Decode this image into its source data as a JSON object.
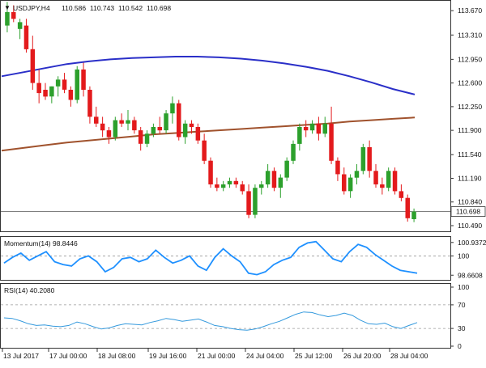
{
  "header": {
    "symbol": "USDJPY,H4",
    "open": "110.586",
    "high": "110.743",
    "low": "110.542",
    "close": "110.698",
    "arrow_glyph": "▼"
  },
  "price_axis": {
    "ticks": [
      "113.670",
      "113.310",
      "112.950",
      "112.600",
      "112.250",
      "111.900",
      "111.540",
      "111.190",
      "110.840",
      "110.490"
    ],
    "tick_values": [
      113.67,
      113.31,
      112.95,
      112.6,
      112.25,
      111.9,
      111.54,
      111.19,
      110.84,
      110.49
    ],
    "current_label": "110.698",
    "current_value": 110.698,
    "range": [
      110.43,
      113.78
    ]
  },
  "momentum": {
    "title": "Momentum(14) 98.8446",
    "ticks": [
      "100.9372",
      "100",
      "98.6608"
    ],
    "tick_values": [
      100.9372,
      100,
      98.6608
    ],
    "range": [
      98.45,
      101.15
    ],
    "level": 100
  },
  "rsi": {
    "title": "RSI(14) 40.2080",
    "ticks": [
      "100",
      "70",
      "30",
      "0"
    ],
    "tick_values": [
      100,
      70,
      30,
      0
    ],
    "range": [
      0,
      100
    ],
    "levels": [
      70,
      30
    ]
  },
  "time_axis": {
    "labels": [
      "13 Jul 2017",
      "17 Jul 00:00",
      "18 Jul 08:00",
      "19 Jul 16:00",
      "21 Jul 00:00",
      "24 Jul 04:00",
      "25 Jul 12:00",
      "26 Jul 20:00",
      "28 Jul 04:00"
    ]
  },
  "colors": {
    "bull": "#2ca02c",
    "bear": "#e31a1c",
    "ma_fast": "#2a2fc8",
    "ma_slow": "#a0522d",
    "oscillator": "#1e90ff",
    "rsi": "#3399dd",
    "grid": "#cccccc",
    "text": "#111111"
  },
  "chart_data": {
    "type": "candlestick",
    "title": "USDJPY,H4",
    "candles": [
      {
        "o": 113.45,
        "h": 113.8,
        "l": 113.35,
        "c": 113.65
      },
      {
        "o": 113.65,
        "h": 113.75,
        "l": 113.5,
        "c": 113.55
      },
      {
        "o": 113.4,
        "h": 113.55,
        "l": 113.25,
        "c": 113.5
      },
      {
        "o": 113.45,
        "h": 113.55,
        "l": 113.05,
        "c": 113.1
      },
      {
        "o": 113.1,
        "h": 113.3,
        "l": 112.5,
        "c": 112.6
      },
      {
        "o": 112.6,
        "h": 112.8,
        "l": 112.3,
        "c": 112.45
      },
      {
        "o": 112.5,
        "h": 112.6,
        "l": 112.35,
        "c": 112.4
      },
      {
        "o": 112.4,
        "h": 112.55,
        "l": 112.3,
        "c": 112.55
      },
      {
        "o": 112.55,
        "h": 112.7,
        "l": 112.4,
        "c": 112.65
      },
      {
        "o": 112.65,
        "h": 112.75,
        "l": 112.45,
        "c": 112.5
      },
      {
        "o": 112.5,
        "h": 112.55,
        "l": 112.25,
        "c": 112.35
      },
      {
        "o": 112.35,
        "h": 112.85,
        "l": 112.3,
        "c": 112.8
      },
      {
        "o": 112.8,
        "h": 112.9,
        "l": 112.4,
        "c": 112.5
      },
      {
        "o": 112.5,
        "h": 112.55,
        "l": 112.0,
        "c": 112.1
      },
      {
        "o": 112.1,
        "h": 112.25,
        "l": 111.95,
        "c": 112.0
      },
      {
        "o": 112.0,
        "h": 112.1,
        "l": 111.8,
        "c": 111.9
      },
      {
        "o": 111.9,
        "h": 111.95,
        "l": 111.7,
        "c": 111.8
      },
      {
        "o": 111.8,
        "h": 112.1,
        "l": 111.75,
        "c": 112.05
      },
      {
        "o": 112.05,
        "h": 112.15,
        "l": 111.95,
        "c": 112.0
      },
      {
        "o": 112.0,
        "h": 112.2,
        "l": 111.9,
        "c": 112.05
      },
      {
        "o": 112.05,
        "h": 112.1,
        "l": 111.85,
        "c": 111.9
      },
      {
        "o": 111.9,
        "h": 111.95,
        "l": 111.6,
        "c": 111.7
      },
      {
        "o": 111.7,
        "h": 111.9,
        "l": 111.65,
        "c": 111.85
      },
      {
        "o": 111.85,
        "h": 112.0,
        "l": 111.8,
        "c": 111.95
      },
      {
        "o": 111.95,
        "h": 112.1,
        "l": 111.85,
        "c": 111.9
      },
      {
        "o": 111.9,
        "h": 112.2,
        "l": 111.85,
        "c": 112.15
      },
      {
        "o": 112.15,
        "h": 112.4,
        "l": 112.0,
        "c": 112.3
      },
      {
        "o": 112.3,
        "h": 112.35,
        "l": 111.75,
        "c": 111.8
      },
      {
        "o": 111.8,
        "h": 112.05,
        "l": 111.7,
        "c": 112.0
      },
      {
        "o": 112.0,
        "h": 112.05,
        "l": 111.85,
        "c": 111.95
      },
      {
        "o": 111.95,
        "h": 112.0,
        "l": 111.7,
        "c": 111.75
      },
      {
        "o": 111.75,
        "h": 111.85,
        "l": 111.4,
        "c": 111.45
      },
      {
        "o": 111.45,
        "h": 111.5,
        "l": 111.05,
        "c": 111.1
      },
      {
        "o": 111.1,
        "h": 111.2,
        "l": 111.0,
        "c": 111.05
      },
      {
        "o": 111.05,
        "h": 111.15,
        "l": 111.0,
        "c": 111.1
      },
      {
        "o": 111.1,
        "h": 111.2,
        "l": 111.05,
        "c": 111.15
      },
      {
        "o": 111.15,
        "h": 111.2,
        "l": 111.05,
        "c": 111.1
      },
      {
        "o": 111.1,
        "h": 111.15,
        "l": 110.95,
        "c": 111.0
      },
      {
        "o": 111.0,
        "h": 111.1,
        "l": 110.6,
        "c": 110.65
      },
      {
        "o": 110.65,
        "h": 111.1,
        "l": 110.6,
        "c": 111.05
      },
      {
        "o": 111.05,
        "h": 111.15,
        "l": 110.95,
        "c": 111.1
      },
      {
        "o": 111.1,
        "h": 111.4,
        "l": 111.05,
        "c": 111.3
      },
      {
        "o": 111.3,
        "h": 111.35,
        "l": 111.0,
        "c": 111.05
      },
      {
        "o": 111.05,
        "h": 111.25,
        "l": 110.9,
        "c": 111.2
      },
      {
        "o": 111.2,
        "h": 111.5,
        "l": 111.15,
        "c": 111.45
      },
      {
        "o": 111.45,
        "h": 111.75,
        "l": 111.4,
        "c": 111.7
      },
      {
        "o": 111.7,
        "h": 112.0,
        "l": 111.6,
        "c": 111.95
      },
      {
        "o": 111.95,
        "h": 112.05,
        "l": 111.8,
        "c": 111.9
      },
      {
        "o": 111.9,
        "h": 112.05,
        "l": 111.85,
        "c": 112.0
      },
      {
        "o": 112.0,
        "h": 112.1,
        "l": 111.75,
        "c": 111.85
      },
      {
        "o": 111.85,
        "h": 112.1,
        "l": 111.8,
        "c": 112.0
      },
      {
        "o": 112.0,
        "h": 112.25,
        "l": 111.4,
        "c": 111.45
      },
      {
        "o": 111.45,
        "h": 111.5,
        "l": 111.15,
        "c": 111.25
      },
      {
        "o": 111.25,
        "h": 111.35,
        "l": 110.95,
        "c": 111.0
      },
      {
        "o": 111.0,
        "h": 111.25,
        "l": 110.9,
        "c": 111.2
      },
      {
        "o": 111.2,
        "h": 111.4,
        "l": 111.1,
        "c": 111.3
      },
      {
        "o": 111.3,
        "h": 111.7,
        "l": 111.25,
        "c": 111.65
      },
      {
        "o": 111.65,
        "h": 111.75,
        "l": 111.2,
        "c": 111.3
      },
      {
        "o": 111.3,
        "h": 111.4,
        "l": 111.05,
        "c": 111.1
      },
      {
        "o": 111.1,
        "h": 111.2,
        "l": 110.95,
        "c": 111.05
      },
      {
        "o": 111.05,
        "h": 111.35,
        "l": 111.0,
        "c": 111.3
      },
      {
        "o": 111.3,
        "h": 111.35,
        "l": 110.95,
        "c": 111.0
      },
      {
        "o": 111.0,
        "h": 111.1,
        "l": 110.85,
        "c": 110.9
      },
      {
        "o": 110.9,
        "h": 110.95,
        "l": 110.55,
        "c": 110.6
      },
      {
        "o": 110.586,
        "h": 110.743,
        "l": 110.542,
        "c": 110.698
      }
    ],
    "ma_fast": [
      112.7,
      112.76,
      112.82,
      112.88,
      112.92,
      112.95,
      112.97,
      112.98,
      112.99,
      112.99,
      112.98,
      112.96,
      112.93,
      112.89,
      112.84,
      112.78,
      112.7,
      112.61,
      112.51,
      112.43
    ],
    "ma_slow": [
      111.6,
      111.64,
      111.68,
      111.72,
      111.75,
      111.78,
      111.81,
      111.84,
      111.86,
      111.88,
      111.9,
      111.92,
      111.94,
      111.96,
      111.98,
      112.0,
      112.03,
      112.05,
      112.07,
      112.09
    ],
    "momentum_values": [
      99.5,
      99.9,
      100.2,
      99.7,
      100.0,
      100.3,
      99.6,
      99.4,
      99.3,
      99.8,
      100.0,
      99.6,
      98.9,
      99.2,
      99.8,
      99.9,
      99.6,
      99.8,
      100.4,
      99.9,
      99.5,
      99.7,
      100.0,
      99.3,
      99.0,
      99.9,
      100.5,
      100.0,
      99.6,
      98.8,
      98.7,
      98.9,
      99.4,
      99.7,
      99.9,
      100.6,
      100.9,
      101.0,
      100.4,
      99.8,
      99.6,
      100.3,
      100.8,
      100.6,
      100.1,
      99.7,
      99.3,
      99.0,
      98.9,
      98.8
    ],
    "rsi_values": [
      48,
      47,
      43,
      38,
      35,
      36,
      34,
      33,
      35,
      41,
      38,
      33,
      29,
      31,
      35,
      38,
      37,
      36,
      40,
      43,
      47,
      45,
      42,
      44,
      46,
      41,
      35,
      33,
      30,
      28,
      27,
      29,
      33,
      38,
      42,
      48,
      54,
      58,
      57,
      53,
      50,
      52,
      56,
      52,
      44,
      38,
      37,
      39,
      33,
      30,
      35,
      40
    ]
  }
}
